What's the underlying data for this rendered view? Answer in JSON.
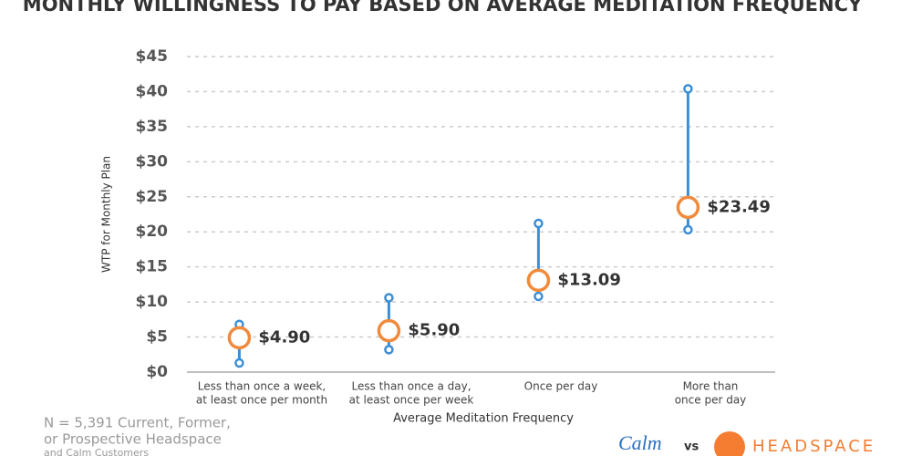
{
  "chart_data": {
    "type": "range",
    "title": "MONTHLY WILLINGNESS TO PAY BASED ON AVERAGE MEDITATION FREQUENCY",
    "y_label": "WTP for Monthly Plan",
    "x_label": "Average Meditation Frequency",
    "categories": [
      [
        "Less than once a week,",
        "at least once per month"
      ],
      [
        "Less than once a day,",
        "at least once per week"
      ],
      [
        "Once per day"
      ],
      [
        "More than",
        "once per day"
      ]
    ],
    "values": [
      4.9,
      5.9,
      13.09,
      23.49
    ],
    "value_labels": [
      "$4.90",
      "$5.90",
      "$13.09",
      "$23.49"
    ],
    "low": [
      1.3,
      3.2,
      10.8,
      20.3
    ],
    "high": [
      6.8,
      10.6,
      21.2,
      40.4
    ],
    "point_color": "#f08a3c",
    "range_color": "#3b8fd6",
    "ylim": [
      0,
      45
    ],
    "yticks": [
      {
        "value": 0,
        "label": "$0"
      },
      {
        "value": 5,
        "label": "$5"
      },
      {
        "value": 10,
        "label": "$10"
      },
      {
        "value": 15,
        "label": "$15"
      },
      {
        "value": 20,
        "label": "$20"
      },
      {
        "value": 25,
        "label": "$25"
      },
      {
        "value": 30,
        "label": "$30"
      },
      {
        "value": 35,
        "label": "$35"
      },
      {
        "value": 40,
        "label": "$40"
      },
      {
        "value": 45,
        "label": "$45"
      }
    ],
    "grid": true
  },
  "footnote": [
    "N = 5,391 Current, Former,",
    "or Prospective Headspace",
    "and Calm Customers"
  ],
  "logos": {
    "left": "Calm",
    "middle": "vs",
    "right": "HEADSPACE"
  }
}
